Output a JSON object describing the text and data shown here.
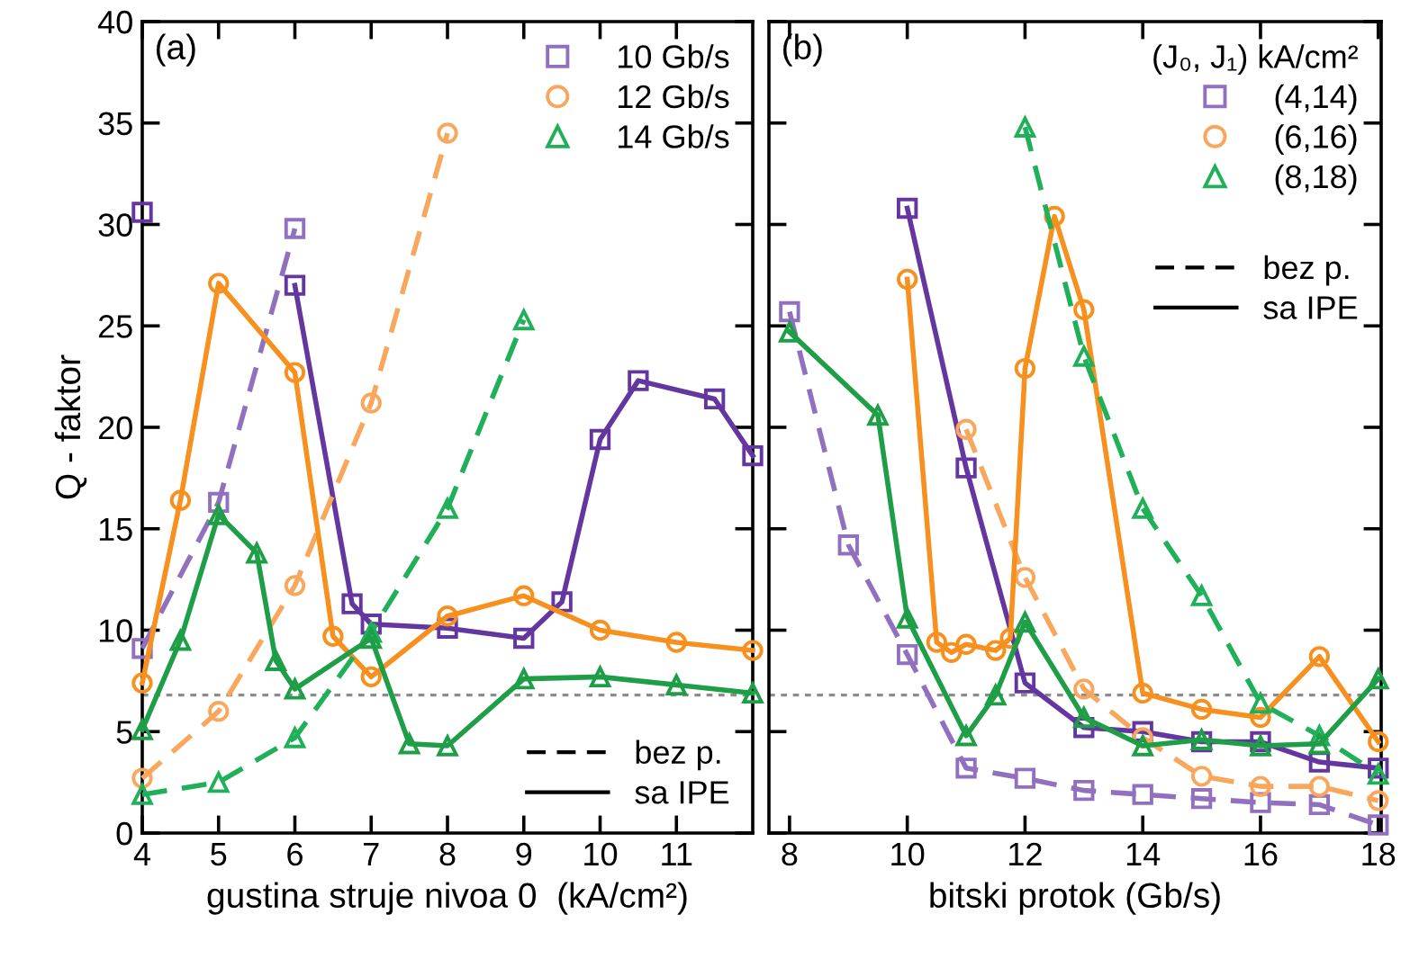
{
  "chart_data": [
    {
      "type": "line",
      "title": "(a)",
      "xlabel": "gustina struje nivoa 0  (kA/cm²)",
      "ylabel": "Q - faktor",
      "xlim": [
        4,
        12
      ],
      "xticks": [
        4,
        5,
        6,
        7,
        8,
        9,
        10,
        11
      ],
      "ylim": [
        0,
        40
      ],
      "yticks": [
        0,
        5,
        10,
        15,
        20,
        25,
        30,
        35,
        40
      ],
      "legend": "top right",
      "grid": false,
      "annotations": [
        "bez p.",
        "sa IPE"
      ],
      "ref_lines": [
        {
          "axis": "y",
          "value": 6.8,
          "color": "#8c8c8c",
          "line_style": "dotted"
        }
      ],
      "series": [
        {
          "name": "10 Gb/s",
          "color": "#9170c0",
          "marker": "square",
          "line_style": "dashed",
          "x": [
            4,
            5,
            6
          ],
          "values": [
            9.1,
            16.3,
            29.8
          ]
        },
        {
          "color": "#6436a0",
          "marker": "square",
          "line_style": "solid",
          "x": [
            4,
            5,
            6,
            6.75,
            7,
            8,
            9,
            9.5,
            10,
            10.5,
            11.5,
            12
          ],
          "values": [
            30.6,
            null,
            27.0,
            11.3,
            10.3,
            10.1,
            9.6,
            11.4,
            19.4,
            22.3,
            21.4,
            18.6
          ]
        },
        {
          "name": "12 Gb/s",
          "color": "#f9a75c",
          "marker": "circle",
          "line_style": "dashed",
          "x": [
            4,
            5,
            6,
            7,
            8
          ],
          "values": [
            2.7,
            6.0,
            12.2,
            21.2,
            34.5
          ]
        },
        {
          "color": "#f7901e",
          "marker": "circle",
          "line_style": "solid",
          "x": [
            4,
            4.5,
            5,
            6,
            6.5,
            7,
            8,
            9,
            10,
            11,
            12
          ],
          "values": [
            7.4,
            16.4,
            27.1,
            22.7,
            9.7,
            7.7,
            10.7,
            11.7,
            10.0,
            9.4,
            9.0
          ]
        },
        {
          "name": "14 Gb/s",
          "color": "#20b05a",
          "marker": "triangle",
          "line_style": "dashed",
          "x": [
            4,
            5,
            6,
            7,
            8,
            9
          ],
          "values": [
            1.9,
            2.5,
            4.7,
            9.9,
            16.0,
            25.3
          ]
        },
        {
          "color": "#1f9e48",
          "marker": "triangle",
          "line_style": "solid",
          "x": [
            4,
            4.5,
            5,
            5.5,
            5.75,
            6,
            7,
            7.5,
            8,
            9,
            10,
            11,
            12
          ],
          "values": [
            5.1,
            9.5,
            15.7,
            13.8,
            8.5,
            7.1,
            9.6,
            4.4,
            4.3,
            7.6,
            7.7,
            7.3,
            6.9
          ]
        }
      ]
    },
    {
      "type": "line",
      "title": "(b)",
      "xlabel": "bitski protok (Gb/s)",
      "legend_title": "(J₀, J₁) kA/cm²",
      "xlim": [
        7.65,
        18.05
      ],
      "xticks": [
        8,
        10,
        12,
        14,
        16,
        18
      ],
      "ylim": [
        0,
        40
      ],
      "yticks": [
        0,
        5,
        10,
        15,
        20,
        25,
        30,
        35,
        40
      ],
      "tick_labels": "x",
      "legend": "top right",
      "grid": false,
      "annotations": [
        "bez p.",
        "sa IPE"
      ],
      "ref_lines": [
        {
          "axis": "y",
          "value": 6.8,
          "color": "#8c8c8c",
          "line_style": "dotted"
        }
      ],
      "series": [
        {
          "name": "(4,14)",
          "color": "#9170c0",
          "marker": "square",
          "line_style": "dashed",
          "x": [
            8,
            9,
            10,
            11,
            12,
            13,
            14,
            15,
            16,
            17,
            18
          ],
          "values": [
            25.7,
            14.2,
            8.8,
            3.2,
            2.7,
            2.1,
            1.9,
            1.7,
            1.5,
            1.4,
            0.4
          ]
        },
        {
          "color": "#6436a0",
          "marker": "square",
          "line_style": "solid",
          "x": [
            10,
            11,
            12,
            13,
            14,
            15,
            16,
            17,
            18
          ],
          "values": [
            30.8,
            18.0,
            7.4,
            5.2,
            5.0,
            4.5,
            4.5,
            3.5,
            3.2
          ]
        },
        {
          "name": "(6,16)",
          "color": "#f9a75c",
          "marker": "circle",
          "line_style": "dashed",
          "x": [
            11,
            12,
            13,
            14,
            15,
            16,
            17,
            18
          ],
          "values": [
            19.9,
            12.6,
            7.1,
            4.7,
            2.8,
            2.3,
            2.3,
            1.6
          ]
        },
        {
          "color": "#f7901e",
          "marker": "circle",
          "line_style": "solid",
          "x": [
            10,
            10.5,
            10.75,
            11,
            11.5,
            11.75,
            12,
            12.5,
            13,
            14,
            15,
            16,
            17,
            18
          ],
          "values": [
            27.3,
            9.4,
            8.9,
            9.3,
            9.0,
            9.6,
            22.9,
            30.4,
            25.8,
            6.9,
            6.1,
            5.7,
            8.7,
            4.5
          ]
        },
        {
          "name": "(8,18)",
          "color": "#20b05a",
          "marker": "triangle",
          "line_style": "dashed",
          "x": [
            12,
            13,
            14,
            15,
            16,
            17,
            18
          ],
          "values": [
            34.8,
            23.5,
            16.0,
            11.7,
            6.4,
            4.8,
            2.9
          ]
        },
        {
          "color": "#1f9e48",
          "marker": "triangle",
          "line_style": "solid",
          "x": [
            8,
            9.5,
            10,
            11,
            11.5,
            12,
            13,
            14,
            15,
            16,
            17,
            18
          ],
          "values": [
            24.7,
            20.6,
            10.6,
            4.8,
            6.8,
            10.4,
            5.7,
            4.3,
            4.6,
            4.3,
            4.4,
            7.6
          ]
        }
      ]
    }
  ]
}
